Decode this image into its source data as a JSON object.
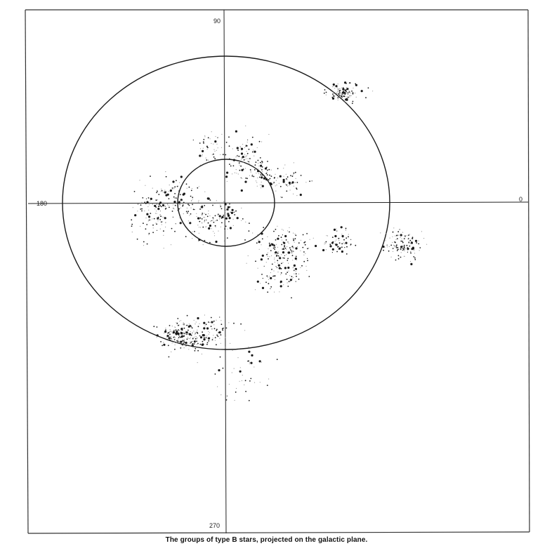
{
  "chart_data": {
    "type": "scatter",
    "title": "The groups of type B stars, projected on the galactic plane.",
    "axis_labels": {
      "top": "90",
      "left": "180",
      "right": "0",
      "bottom": "270"
    },
    "rings": [
      "inner circle",
      "outer circle"
    ],
    "colors": {
      "ink": "#1a1a1a",
      "faint": "#9a9a9a",
      "frame": "#333333"
    },
    "clusters": [
      {
        "center": [
          0.72,
          0.75
        ],
        "spread": [
          0.045,
          0.03
        ],
        "count": 110
      },
      {
        "center": [
          -0.1,
          0.37
        ],
        "spread": [
          0.05,
          0.05
        ],
        "count": 40
      },
      {
        "center": [
          0.1,
          0.34
        ],
        "spread": [
          0.07,
          0.06
        ],
        "count": 70
      },
      {
        "center": [
          0.19,
          0.2
        ],
        "spread": [
          0.07,
          0.05
        ],
        "count": 70
      },
      {
        "center": [
          0.35,
          0.15
        ],
        "spread": [
          0.09,
          0.06
        ],
        "count": 70
      },
      {
        "center": [
          -0.3,
          0.04
        ],
        "spread": [
          0.08,
          0.06
        ],
        "count": 90
      },
      {
        "center": [
          -0.43,
          -0.08
        ],
        "spread": [
          0.07,
          0.09
        ],
        "count": 110
      },
      {
        "center": [
          -0.13,
          -0.12
        ],
        "spread": [
          0.07,
          0.07
        ],
        "count": 100
      },
      {
        "center": [
          0.03,
          -0.07
        ],
        "spread": [
          0.05,
          0.04
        ],
        "count": 40
      },
      {
        "center": [
          0.34,
          -0.31
        ],
        "spread": [
          0.1,
          0.07
        ],
        "count": 160
      },
      {
        "center": [
          0.33,
          -0.5
        ],
        "spread": [
          0.07,
          0.06
        ],
        "count": 70
      },
      {
        "center": [
          0.7,
          -0.26
        ],
        "spread": [
          0.05,
          0.04
        ],
        "count": 60
      },
      {
        "center": [
          1.08,
          -0.29
        ],
        "spread": [
          0.055,
          0.05
        ],
        "count": 130
      },
      {
        "center": [
          -0.3,
          -0.9
        ],
        "spread": [
          0.06,
          0.05
        ],
        "count": 120
      },
      {
        "center": [
          -0.2,
          -0.9
        ],
        "spread": [
          0.06,
          0.05
        ],
        "count": 100
      },
      {
        "center": [
          -0.08,
          -0.88
        ],
        "spread": [
          0.05,
          0.05
        ],
        "count": 60
      },
      {
        "center": [
          0.1,
          -1.1
        ],
        "spread": [
          0.1,
          0.1
        ],
        "count": 50
      }
    ]
  }
}
